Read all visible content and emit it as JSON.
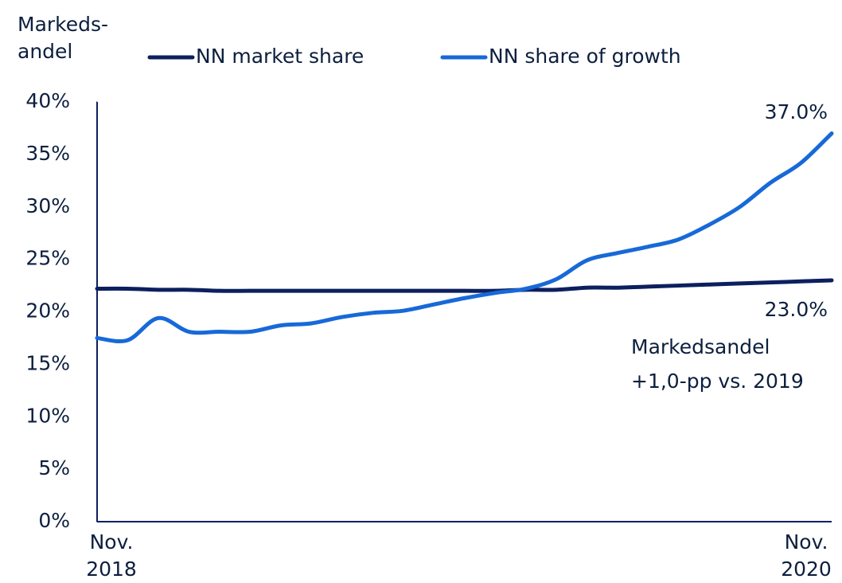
{
  "chart_data": {
    "type": "line",
    "y_axis_label": "Markeds-andel",
    "categories": [
      "Nov. 2018",
      null,
      null,
      null,
      null,
      null,
      null,
      null,
      null,
      null,
      null,
      null,
      null,
      null,
      null,
      null,
      null,
      null,
      null,
      null,
      null,
      null,
      null,
      null,
      "Nov. 2020"
    ],
    "series": [
      {
        "name": "NN market share",
        "color": "#0c1f5e",
        "values": [
          22.2,
          22.2,
          22.1,
          22.1,
          22.0,
          22.0,
          22.0,
          22.0,
          22.0,
          22.0,
          22.0,
          22.0,
          22.0,
          22.0,
          22.1,
          22.1,
          22.3,
          22.3,
          22.4,
          22.5,
          22.6,
          22.7,
          22.8,
          22.9,
          23.0
        ],
        "value_labels": [
          null,
          null,
          null,
          null,
          null,
          null,
          null,
          null,
          null,
          null,
          null,
          null,
          null,
          null,
          null,
          null,
          null,
          null,
          null,
          null,
          null,
          null,
          null,
          null,
          "23.0%"
        ]
      },
      {
        "name": "NN share of growth",
        "color": "#1769d8",
        "values": [
          17.5,
          17.3,
          19.4,
          18.1,
          18.1,
          18.1,
          18.7,
          18.9,
          19.5,
          19.9,
          20.1,
          20.7,
          21.3,
          21.8,
          22.2,
          23.1,
          24.9,
          25.6,
          26.2,
          26.9,
          28.3,
          30.0,
          32.3,
          34.2,
          37.0
        ],
        "value_labels": [
          null,
          null,
          null,
          null,
          null,
          null,
          null,
          null,
          null,
          null,
          null,
          null,
          null,
          null,
          null,
          null,
          null,
          null,
          null,
          null,
          null,
          null,
          null,
          null,
          "37.0%"
        ]
      }
    ],
    "annotations": [
      "Markedsandel",
      "+1,0-pp vs. 2019"
    ],
    "ylim": [
      0,
      40
    ],
    "yticks": [
      {
        "value": 0,
        "label": "0%"
      },
      {
        "value": 5,
        "label": "5%"
      },
      {
        "value": 10,
        "label": "10%"
      },
      {
        "value": 15,
        "label": "15%"
      },
      {
        "value": 20,
        "label": "20%"
      },
      {
        "value": 25,
        "label": "25%"
      },
      {
        "value": 30,
        "label": "30%"
      },
      {
        "value": 35,
        "label": "35%"
      },
      {
        "value": 40,
        "label": "40%"
      }
    ],
    "grid": false,
    "legend": "top"
  }
}
